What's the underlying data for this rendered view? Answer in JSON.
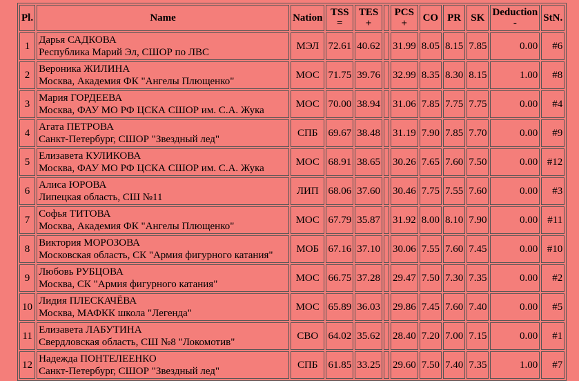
{
  "headers": {
    "pl": "Pl.",
    "name": "Name",
    "nation": "Nation",
    "tss_top": "TSS",
    "tss_bottom": "=",
    "tes_top": "TES",
    "tes_bottom": "+",
    "pcs_top": "PCS",
    "pcs_bottom": "+",
    "co": "CO",
    "pr": "PR",
    "sk": "SK",
    "ded_top": "Deduction",
    "ded_bottom": "-",
    "stn": "StN."
  },
  "rows": [
    {
      "pl": "1",
      "name": "Дарья САДКОВА",
      "club": "Республика Марий Эл, СШОР по ЛВС",
      "nation": "МЭЛ",
      "tss": "72.61",
      "tes": "40.62",
      "pcs": "31.99",
      "co": "8.05",
      "pr": "8.15",
      "sk": "7.85",
      "ded": "0.00",
      "stn": "#6"
    },
    {
      "pl": "2",
      "name": "Вероника ЖИЛИНА",
      "club": "Москва, Академия ФК \"Ангелы Плющенко\"",
      "nation": "МОС",
      "tss": "71.75",
      "tes": "39.76",
      "pcs": "32.99",
      "co": "8.35",
      "pr": "8.30",
      "sk": "8.15",
      "ded": "1.00",
      "stn": "#8"
    },
    {
      "pl": "3",
      "name": "Мария ГОРДЕЕВА",
      "club": "Москва, ФАУ МО РФ ЦСКА СШОР им. С.А. Жука",
      "nation": "МОС",
      "tss": "70.00",
      "tes": "38.94",
      "pcs": "31.06",
      "co": "7.85",
      "pr": "7.75",
      "sk": "7.75",
      "ded": "0.00",
      "stn": "#4"
    },
    {
      "pl": "4",
      "name": "Агата ПЕТРОВА",
      "club": "Санкт-Петербург, СШОР \"Звездный лед\"",
      "nation": "СПБ",
      "tss": "69.67",
      "tes": "38.48",
      "pcs": "31.19",
      "co": "7.90",
      "pr": "7.85",
      "sk": "7.70",
      "ded": "0.00",
      "stn": "#9"
    },
    {
      "pl": "5",
      "name": "Елизавета КУЛИКОВА",
      "club": "Москва, ФАУ МО РФ ЦСКА СШОР им. С.А. Жука",
      "nation": "МОС",
      "tss": "68.91",
      "tes": "38.65",
      "pcs": "30.26",
      "co": "7.65",
      "pr": "7.60",
      "sk": "7.50",
      "ded": "0.00",
      "stn": "#12"
    },
    {
      "pl": "6",
      "name": "Алиса ЮРОВА",
      "club": "Липецкая область, СШ №11",
      "nation": "ЛИП",
      "tss": "68.06",
      "tes": "37.60",
      "pcs": "30.46",
      "co": "7.75",
      "pr": "7.55",
      "sk": "7.60",
      "ded": "0.00",
      "stn": "#3"
    },
    {
      "pl": "7",
      "name": "Софья ТИТОВА",
      "club": "Москва, Академия ФК \"Ангелы Плющенко\"",
      "nation": "МОС",
      "tss": "67.79",
      "tes": "35.87",
      "pcs": "31.92",
      "co": "8.00",
      "pr": "8.10",
      "sk": "7.90",
      "ded": "0.00",
      "stn": "#11"
    },
    {
      "pl": "8",
      "name": "Виктория МОРОЗОВА",
      "club": "Московская область, СК \"Армия фигурного катания\"",
      "nation": "МОБ",
      "tss": "67.16",
      "tes": "37.10",
      "pcs": "30.06",
      "co": "7.55",
      "pr": "7.60",
      "sk": "7.45",
      "ded": "0.00",
      "stn": "#10"
    },
    {
      "pl": "9",
      "name": "Любовь РУБЦОВА",
      "club": "Москва, СК \"Армия фигурного катания\"",
      "nation": "МОС",
      "tss": "66.75",
      "tes": "37.28",
      "pcs": "29.47",
      "co": "7.50",
      "pr": "7.30",
      "sk": "7.35",
      "ded": "0.00",
      "stn": "#2"
    },
    {
      "pl": "10",
      "name": "Лидия ПЛЕСКАЧЁВА",
      "club": "Москва, МАФКК школа \"Легенда\"",
      "nation": "МОС",
      "tss": "65.89",
      "tes": "36.03",
      "pcs": "29.86",
      "co": "7.45",
      "pr": "7.60",
      "sk": "7.40",
      "ded": "0.00",
      "stn": "#5"
    },
    {
      "pl": "11",
      "name": "Елизавета ЛАБУТИНА",
      "club": "Свердловская область, СШ №8 \"Локомотив\"",
      "nation": "СВО",
      "tss": "64.02",
      "tes": "35.62",
      "pcs": "28.40",
      "co": "7.20",
      "pr": "7.00",
      "sk": "7.15",
      "ded": "0.00",
      "stn": "#1"
    },
    {
      "pl": "12",
      "name": "Надежда ПОНТЕЛЕЕНКО",
      "club": "Санкт-Петербург, СШОР \"Звездный лед\"",
      "nation": "СПБ",
      "tss": "61.85",
      "tes": "33.25",
      "pcs": "29.60",
      "co": "7.50",
      "pr": "7.40",
      "sk": "7.35",
      "ded": "1.00",
      "stn": "#7"
    }
  ]
}
